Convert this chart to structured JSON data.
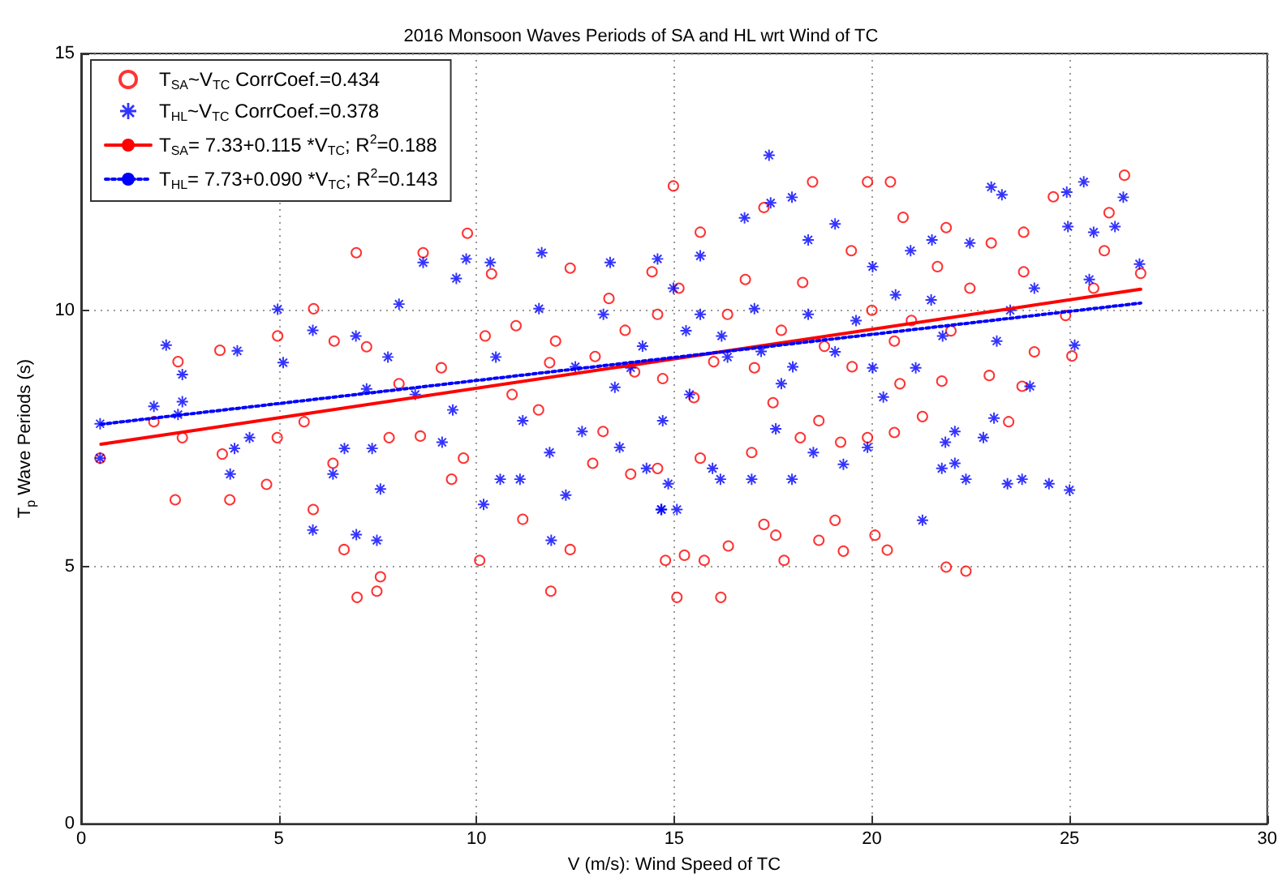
{
  "chart_data": {
    "type": "scatter",
    "title": "2016 Monsoon Waves Periods of SA and HL wrt Wind of TC",
    "xlabel": "V (m/s): Wind Speed of TC",
    "ylabel": "T$_{p}$ Wave Periods (s)",
    "xlim": [
      0,
      30
    ],
    "xticks": [
      0,
      5,
      10,
      15,
      20,
      25,
      30
    ],
    "ylim": [
      0,
      15
    ],
    "yticks": [
      0,
      5,
      10,
      15
    ],
    "grid": true,
    "legend": "top left",
    "series": [
      {
        "name": "T$_{SA}$~V$_{TC}$ CorrCoef.=0.434",
        "marker": "circle",
        "color": "#ff0000",
        "x": [
          0.48,
          2.45,
          2.38,
          1.84,
          2.56,
          3.51,
          3.76,
          3.57,
          4.69,
          4.97,
          4.96,
          5.64,
          5.87,
          5.88,
          6.37,
          6.65,
          6.96,
          6.98,
          7.48,
          7.57,
          7.79,
          8.65,
          9.77,
          9.37,
          9.67,
          10.08,
          10.38,
          11.17,
          11.88,
          12.37,
          12.37,
          14.78,
          13.35,
          14.58,
          8.58,
          9.11,
          10.9,
          11.57,
          13.2,
          12.94,
          13.9,
          10.22,
          11.85,
          13.76,
          8.04,
          7.22,
          6.4,
          14.98,
          18.5,
          19.89,
          20.47,
          26.39,
          24.59,
          15.66,
          17.27,
          20.79,
          21.88,
          23.84,
          26.8,
          25.06,
          23.8,
          23.46,
          22.97,
          21.77,
          21.28,
          20.57,
          19.07,
          20.08,
          20.39,
          21.88,
          22.38,
          18.66,
          19.28,
          17.78,
          17.27,
          17.57,
          16.37,
          15.26,
          15.76,
          15.07,
          16.18,
          15.66,
          16.96,
          18.19,
          19.89,
          19.21,
          18.66,
          22.48,
          23.02,
          25.88,
          25.61,
          19.48,
          17.71,
          17.03,
          16.35,
          20.57,
          20.71,
          18.25,
          21.66,
          23.84,
          24.11,
          14.71,
          15.12,
          14.44,
          14.58,
          16.0,
          17.5,
          18.8,
          20.0,
          21.0,
          15.5,
          16.8,
          19.5,
          22.0,
          14.0,
          13.0,
          12.0,
          11.0,
          24.9,
          26.0
        ],
        "values": [
          7.12,
          9.0,
          6.31,
          7.83,
          7.52,
          9.22,
          6.31,
          7.2,
          6.61,
          9.5,
          7.52,
          7.83,
          6.12,
          10.03,
          7.02,
          5.34,
          11.12,
          4.41,
          4.53,
          4.81,
          7.52,
          11.12,
          11.5,
          6.71,
          7.12,
          5.13,
          10.71,
          5.93,
          4.53,
          5.34,
          10.82,
          5.13,
          10.23,
          9.92,
          7.55,
          8.88,
          8.36,
          8.06,
          7.64,
          7.02,
          6.81,
          9.5,
          8.98,
          9.61,
          8.57,
          9.29,
          9.4,
          12.42,
          12.5,
          12.5,
          12.5,
          12.63,
          12.21,
          11.52,
          12.0,
          11.81,
          11.61,
          11.52,
          10.72,
          9.11,
          8.52,
          7.83,
          8.73,
          8.62,
          7.93,
          7.62,
          5.91,
          5.62,
          5.33,
          5.0,
          4.92,
          5.52,
          5.31,
          5.13,
          5.83,
          5.62,
          5.41,
          5.23,
          5.13,
          4.41,
          4.41,
          7.12,
          7.23,
          7.52,
          7.52,
          7.43,
          7.85,
          10.43,
          11.31,
          11.16,
          10.43,
          11.16,
          9.61,
          8.88,
          9.92,
          9.4,
          8.57,
          10.54,
          10.85,
          10.75,
          9.19,
          8.67,
          10.43,
          10.75,
          6.92,
          9.0,
          8.2,
          9.3,
          10.0,
          9.8,
          8.3,
          10.6,
          8.9,
          9.6,
          8.8,
          9.1,
          9.4,
          9.7,
          9.9,
          11.9
        ]
      },
      {
        "name": "T$_{HL}$~V$_{TC}$ CorrCoef.=0.378",
        "marker": "star",
        "color": "#0000ff",
        "x": [
          0.48,
          0.48,
          2.15,
          1.84,
          2.56,
          2.56,
          2.45,
          3.77,
          3.88,
          4.26,
          3.95,
          4.97,
          5.11,
          5.86,
          6.37,
          6.66,
          6.96,
          7.48,
          7.57,
          7.36,
          8.65,
          9.49,
          9.74,
          10.35,
          10.18,
          10.6,
          11.1,
          11.65,
          11.89,
          12.26,
          13.38,
          14.58,
          14.67,
          7.22,
          8.45,
          9.4,
          10.49,
          11.17,
          12.67,
          11.85,
          13.62,
          13.9,
          13.21,
          11.58,
          8.04,
          5.86,
          6.95,
          7.76,
          9.13,
          14.3,
          17.4,
          17.44,
          17.98,
          16.78,
          23.02,
          23.29,
          25.36,
          26.36,
          26.15,
          25.61,
          26.77,
          24.93,
          24.96,
          25.13,
          25.0,
          24.48,
          23.43,
          23.8,
          24.0,
          22.38,
          22.82,
          23.09,
          22.1,
          21.86,
          21.77,
          21.28,
          22.1,
          19.28,
          19.89,
          17.98,
          16.96,
          16.17,
          15.97,
          14.85,
          14.68,
          15.07,
          17.57,
          18.52,
          20.29,
          21.11,
          21.52,
          22.48,
          20.98,
          20.02,
          19.07,
          18.39,
          15.66,
          14.98,
          16.35,
          17.71,
          19.07,
          20.02,
          21.79,
          23.16,
          24.11,
          15.66,
          17.03,
          14.71,
          15.39,
          18.39,
          16.2,
          17.2,
          18.0,
          19.6,
          20.6,
          15.3,
          13.5,
          12.5,
          14.2,
          21.5,
          23.5,
          25.5
        ],
        "values": [
          7.79,
          7.12,
          9.32,
          8.13,
          8.75,
          8.22,
          7.97,
          6.81,
          7.31,
          7.52,
          9.21,
          10.02,
          8.98,
          5.72,
          6.81,
          7.31,
          5.63,
          5.52,
          6.52,
          7.31,
          10.93,
          10.62,
          11.0,
          10.93,
          6.22,
          6.71,
          6.71,
          11.12,
          5.52,
          6.4,
          10.93,
          11.0,
          6.12,
          8.47,
          8.36,
          8.06,
          9.09,
          7.85,
          7.64,
          7.23,
          7.33,
          8.88,
          9.92,
          10.03,
          10.12,
          9.61,
          9.5,
          9.09,
          7.43,
          6.92,
          13.02,
          12.09,
          12.2,
          11.8,
          12.4,
          12.25,
          12.5,
          12.2,
          11.63,
          11.52,
          10.9,
          12.3,
          11.63,
          9.32,
          6.5,
          6.62,
          6.62,
          6.71,
          8.52,
          6.71,
          7.52,
          7.9,
          7.02,
          7.43,
          6.92,
          5.91,
          7.64,
          7.0,
          7.33,
          6.71,
          6.71,
          6.71,
          6.92,
          6.62,
          6.12,
          6.12,
          7.69,
          7.23,
          8.31,
          8.88,
          11.37,
          11.31,
          11.16,
          10.85,
          11.68,
          11.37,
          11.06,
          10.43,
          9.09,
          8.57,
          9.19,
          8.88,
          9.5,
          9.4,
          10.43,
          9.92,
          10.03,
          7.85,
          8.36,
          9.92,
          9.5,
          9.2,
          8.9,
          9.8,
          10.3,
          9.6,
          8.5,
          8.9,
          9.3,
          10.2,
          10.0,
          10.6
        ]
      },
      {
        "name": "T$_{SA}$= 7.33+0.115 *V$_{TC}$; R$^{2}$=0.188",
        "type": "line",
        "marker": "none",
        "line_style": "solid",
        "color": "#ff0000",
        "x": [
          0.5,
          26.8
        ],
        "values": [
          7.39,
          10.41
        ]
      },
      {
        "name": "T$_{HL}$= 7.73+0.090 *V$_{TC}$; R$^{2}$=0.143",
        "type": "line",
        "marker": "none",
        "line_style": "dotted",
        "color": "#0000ff",
        "x": [
          0.5,
          26.8
        ],
        "values": [
          7.78,
          10.14
        ]
      }
    ]
  }
}
